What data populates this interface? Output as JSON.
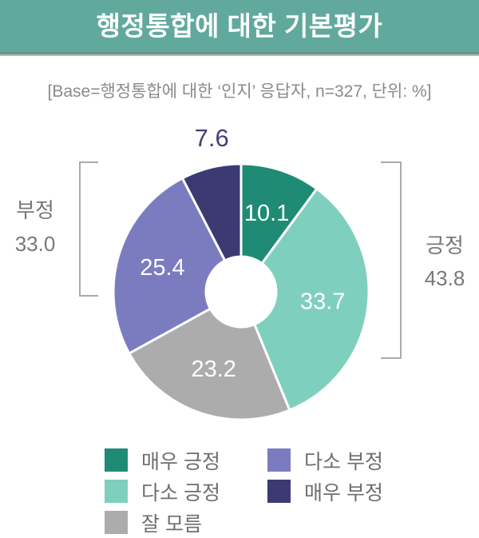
{
  "header": {
    "title": "행정통합에 대한 기본평가",
    "band_color": "#62A99D"
  },
  "subtitle": "[Base=행정통합에 대한 ‘인지’ 응답자, n=327, 단위: %]",
  "chart_data": {
    "type": "pie",
    "subtype": "donut",
    "title": "행정통합에 대한 기본평가",
    "n": 327,
    "unit": "%",
    "start_angle_deg": 0,
    "direction": "clockwise",
    "segments": [
      {
        "key": "very-positive",
        "label": "매우 긍정",
        "value": 10.1,
        "color": "#1F8B74",
        "label_position": "inside"
      },
      {
        "key": "somewhat-positive",
        "label": "다소 긍정",
        "value": 33.7,
        "color": "#7FCFBF",
        "label_position": "inside"
      },
      {
        "key": "dont-know",
        "label": "잘 모름",
        "value": 23.2,
        "color": "#ACACAC",
        "label_position": "inside"
      },
      {
        "key": "somewhat-negative",
        "label": "다소 부정",
        "value": 25.4,
        "color": "#7B7CC0",
        "label_position": "inside"
      },
      {
        "key": "very-negative",
        "label": "매우 부정",
        "value": 7.6,
        "color": "#3B3A72",
        "label_position": "outside"
      }
    ],
    "groups": [
      {
        "key": "positive",
        "label": "긍정",
        "value": 43.8,
        "side": "right"
      },
      {
        "key": "negative",
        "label": "부정",
        "value": 33.0,
        "side": "left"
      }
    ],
    "legend_position": "bottom"
  }
}
